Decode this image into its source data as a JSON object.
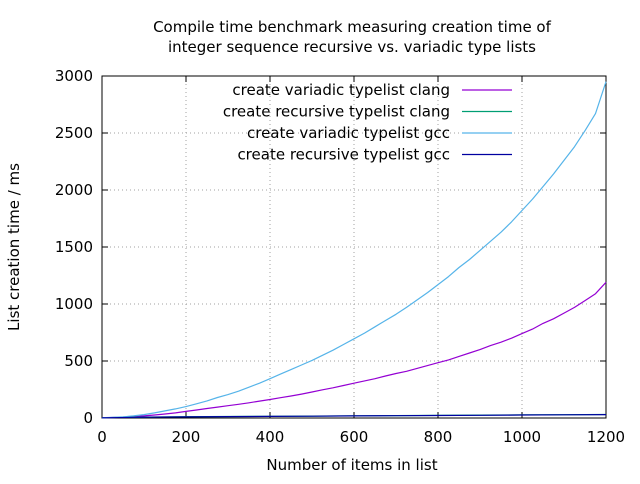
{
  "chart_data": {
    "type": "line",
    "title": "Compile time benchmark measuring creation time of integer sequence recursive vs. variadic type lists",
    "title_lines": [
      "Compile time benchmark measuring creation time of",
      "integer sequence recursive vs. variadic type lists"
    ],
    "xlabel": "Number of items in list",
    "ylabel": "List creation time / ms",
    "xlim": [
      0,
      1200
    ],
    "ylim": [
      0,
      3000
    ],
    "xticks": [
      0,
      200,
      400,
      600,
      800,
      1000,
      1200
    ],
    "yticks": [
      0,
      500,
      1000,
      1500,
      2000,
      2500,
      3000
    ],
    "grid": true,
    "legend_position": "top-right",
    "series": [
      {
        "name": "create variadic typelist clang",
        "color": "#9400d3",
        "x": [
          0,
          25,
          50,
          75,
          100,
          125,
          150,
          175,
          200,
          225,
          250,
          275,
          300,
          325,
          350,
          375,
          400,
          425,
          450,
          475,
          500,
          525,
          550,
          575,
          600,
          625,
          650,
          675,
          700,
          725,
          750,
          775,
          800,
          825,
          850,
          875,
          900,
          925,
          950,
          975,
          1000,
          1025,
          1050,
          1075,
          1100,
          1125,
          1150,
          1175,
          1200
        ],
        "y": [
          2,
          4,
          7,
          12,
          18,
          26,
          35,
          45,
          58,
          70,
          83,
          96,
          108,
          120,
          133,
          148,
          162,
          178,
          193,
          210,
          228,
          247,
          265,
          285,
          305,
          325,
          345,
          368,
          390,
          410,
          435,
          460,
          485,
          510,
          540,
          570,
          600,
          635,
          665,
          700,
          740,
          780,
          830,
          870,
          920,
          970,
          1030,
          1090,
          1190
        ]
      },
      {
        "name": "create recursive typelist clang",
        "color": "#009e73",
        "x": [
          0,
          100,
          200,
          300,
          400,
          500,
          600,
          700,
          800,
          900,
          1000,
          1100,
          1200
        ],
        "y": [
          3,
          8,
          11,
          13,
          15,
          17,
          19,
          21,
          23,
          25,
          27,
          29,
          31
        ]
      },
      {
        "name": "create variadic typelist gcc",
        "color": "#56b4e9",
        "x": [
          0,
          25,
          50,
          75,
          100,
          125,
          150,
          175,
          200,
          225,
          250,
          275,
          300,
          325,
          350,
          375,
          400,
          425,
          450,
          475,
          500,
          525,
          550,
          575,
          600,
          625,
          650,
          675,
          700,
          725,
          750,
          775,
          800,
          825,
          850,
          875,
          900,
          925,
          950,
          975,
          1000,
          1025,
          1050,
          1075,
          1100,
          1125,
          1150,
          1175,
          1200
        ],
        "y": [
          3,
          6,
          10,
          18,
          30,
          45,
          62,
          80,
          100,
          125,
          150,
          180,
          205,
          235,
          270,
          305,
          345,
          385,
          425,
          465,
          505,
          550,
          595,
          645,
          695,
          745,
          800,
          855,
          910,
          970,
          1035,
          1100,
          1170,
          1240,
          1320,
          1390,
          1470,
          1550,
          1630,
          1720,
          1820,
          1920,
          2030,
          2140,
          2260,
          2380,
          2520,
          2670,
          2950
        ]
      },
      {
        "name": "create recursive typelist gcc",
        "color": "#0000a0",
        "x": [
          0,
          100,
          200,
          300,
          400,
          500,
          600,
          700,
          800,
          900,
          1000,
          1100,
          1200
        ],
        "y": [
          2,
          7,
          10,
          12,
          14,
          16,
          18,
          20,
          22,
          24,
          26,
          28,
          30
        ]
      }
    ]
  }
}
